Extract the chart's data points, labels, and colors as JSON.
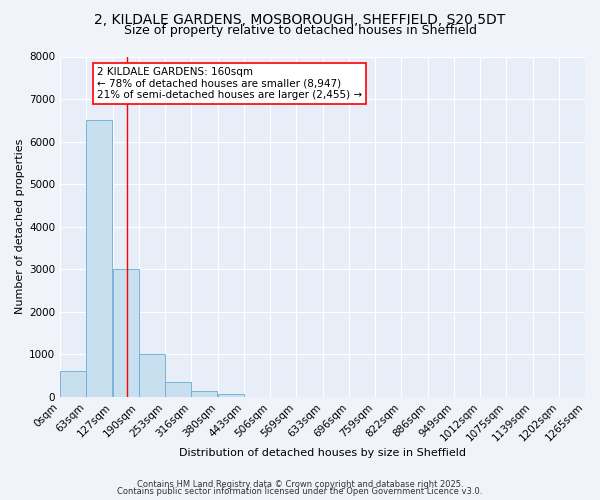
{
  "title_line1": "2, KILDALE GARDENS, MOSBOROUGH, SHEFFIELD, S20 5DT",
  "title_line2": "Size of property relative to detached houses in Sheffield",
  "bar_values": [
    600,
    6500,
    3000,
    1000,
    350,
    150,
    80,
    0,
    0,
    0,
    0,
    0,
    0,
    0,
    0,
    0,
    0,
    0,
    0,
    0
  ],
  "bin_edges": [
    0,
    63,
    127,
    190,
    253,
    316,
    380,
    443,
    506,
    569,
    633,
    696,
    759,
    822,
    886,
    949,
    1012,
    1075,
    1139,
    1202,
    1265
  ],
  "bin_labels": [
    "0sqm",
    "63sqm",
    "127sqm",
    "190sqm",
    "253sqm",
    "316sqm",
    "380sqm",
    "443sqm",
    "506sqm",
    "569sqm",
    "633sqm",
    "696sqm",
    "759sqm",
    "822sqm",
    "886sqm",
    "949sqm",
    "1012sqm",
    "1075sqm",
    "1139sqm",
    "1202sqm",
    "1265sqm"
  ],
  "bar_color": "#c8dff0",
  "bar_edge_color": "#6aaad4",
  "red_line_x": 160,
  "annotation_text": "2 KILDALE GARDENS: 160sqm\n← 78% of detached houses are smaller (8,947)\n21% of semi-detached houses are larger (2,455) →",
  "ylabel": "Number of detached properties",
  "xlabel": "Distribution of detached houses by size in Sheffield",
  "ylim": [
    0,
    8000
  ],
  "yticks": [
    0,
    1000,
    2000,
    3000,
    4000,
    5000,
    6000,
    7000,
    8000
  ],
  "bg_color": "#f0f4fa",
  "plot_bg_color": "#e8eef8",
  "footer_line1": "Contains HM Land Registry data © Crown copyright and database right 2025.",
  "footer_line2": "Contains public sector information licensed under the Open Government Licence v3.0.",
  "title_fontsize": 10,
  "subtitle_fontsize": 9,
  "axis_fontsize": 8,
  "tick_fontsize": 7.5,
  "ann_fontsize": 7.5
}
